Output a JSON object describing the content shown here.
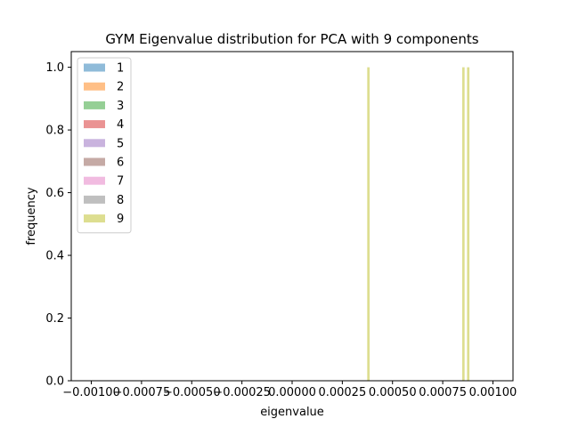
{
  "chart_data": {
    "type": "bar",
    "title": "GYM Eigenvalue distribution for PCA with 9 components",
    "xlabel": "eigenvalue",
    "ylabel": "frequency",
    "xlim": [
      -0.0011,
      0.0011
    ],
    "ylim": [
      0.0,
      1.05
    ],
    "x_ticks": [
      -0.001,
      -0.00075,
      -0.0005,
      -0.00025,
      0.0,
      0.00025,
      0.0005,
      0.00075,
      0.001
    ],
    "x_tick_labels": [
      "−0.00100",
      "−0.00075",
      "−0.00050",
      "−0.00025",
      "0.00000",
      "0.00025",
      "0.00050",
      "0.00075",
      "0.00100"
    ],
    "y_ticks": [
      0.0,
      0.2,
      0.4,
      0.6,
      0.8,
      1.0
    ],
    "y_tick_labels": [
      "0.0",
      "0.2",
      "0.4",
      "0.6",
      "0.8",
      "1.0"
    ],
    "grid": false,
    "legend_position": "top-left",
    "series": [
      {
        "name": "1",
        "color": "#1f77b4",
        "bars": []
      },
      {
        "name": "2",
        "color": "#ff7f0e",
        "bars": []
      },
      {
        "name": "3",
        "color": "#2ca02c",
        "bars": []
      },
      {
        "name": "4",
        "color": "#d62728",
        "bars": []
      },
      {
        "name": "5",
        "color": "#9467bd",
        "bars": []
      },
      {
        "name": "6",
        "color": "#8c564b",
        "bars": []
      },
      {
        "name": "7",
        "color": "#e377c2",
        "bars": []
      },
      {
        "name": "8",
        "color": "#7f7f7f",
        "bars": []
      },
      {
        "name": "9",
        "color": "#bcbd22",
        "bars": [
          {
            "x0": 0.000374,
            "x1": 0.000386,
            "count": 1
          },
          {
            "x0": 0.000847,
            "x1": 0.000859,
            "count": 1
          },
          {
            "x0": 0.000871,
            "x1": 0.000883,
            "count": 1
          }
        ]
      }
    ]
  }
}
